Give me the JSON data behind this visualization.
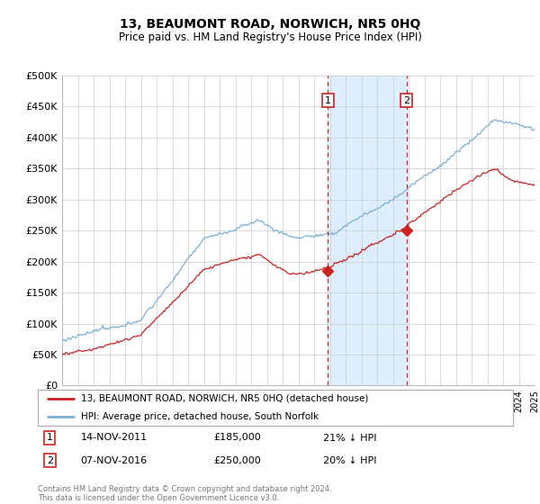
{
  "title": "13, BEAUMONT ROAD, NORWICH, NR5 0HQ",
  "subtitle": "Price paid vs. HM Land Registry's House Price Index (HPI)",
  "ylabel_ticks": [
    "£0",
    "£50K",
    "£100K",
    "£150K",
    "£200K",
    "£250K",
    "£300K",
    "£350K",
    "£400K",
    "£450K",
    "£500K"
  ],
  "ytick_values": [
    0,
    50000,
    100000,
    150000,
    200000,
    250000,
    300000,
    350000,
    400000,
    450000,
    500000
  ],
  "ylim": [
    0,
    500000
  ],
  "hpi_color": "#7ab0d4",
  "price_color": "#cc2222",
  "annotation_box_color": "#cc2222",
  "background_color": "#ffffff",
  "grid_color": "#cccccc",
  "shaded_region_color": "#ddeeff",
  "transaction1": {
    "date": "14-NOV-2011",
    "price": 185000,
    "label": "1",
    "hpi_diff": "21% ↓ HPI",
    "year": 2011.875
  },
  "transaction2": {
    "date": "07-NOV-2016",
    "price": 250000,
    "label": "2",
    "hpi_diff": "20% ↓ HPI",
    "year": 2016.875
  },
  "legend_line1": "13, BEAUMONT ROAD, NORWICH, NR5 0HQ (detached house)",
  "legend_line2": "HPI: Average price, detached house, South Norfolk",
  "footer": "Contains HM Land Registry data © Crown copyright and database right 2024.\nThis data is licensed under the Open Government Licence v3.0.",
  "x_start_year": 1995,
  "x_end_year": 2025
}
